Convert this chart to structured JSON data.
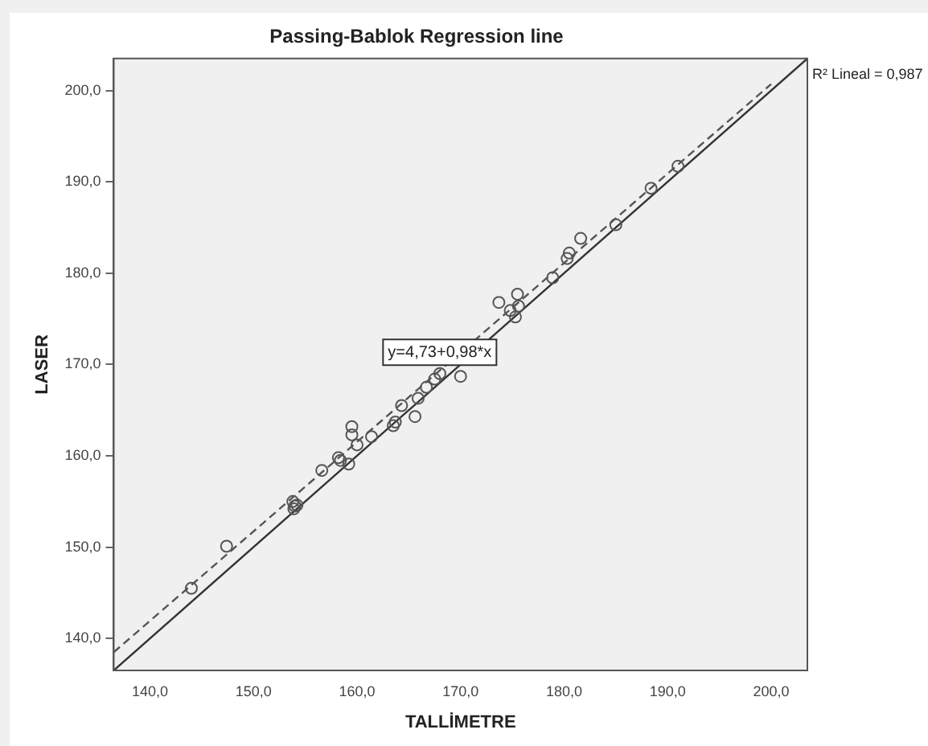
{
  "chart_data": {
    "type": "scatter",
    "title": "Passing-Bablok Regression line",
    "xlabel": "TALLİMETRE",
    "ylabel": "LASER",
    "grid": false,
    "legend": false,
    "xlim": [
      136.5,
      203.5
    ],
    "ylim": [
      136.5,
      203.5
    ],
    "xticks": [
      {
        "value": 140,
        "label": "140,0"
      },
      {
        "value": 150,
        "label": "150,0"
      },
      {
        "value": 160,
        "label": "160,0"
      },
      {
        "value": 170,
        "label": "170,0"
      },
      {
        "value": 180,
        "label": "180,0"
      },
      {
        "value": 190,
        "label": "190,0"
      },
      {
        "value": 200,
        "label": "200,0"
      }
    ],
    "yticks": [
      {
        "value": 140,
        "label": "140,0"
      },
      {
        "value": 150,
        "label": "150,0"
      },
      {
        "value": 160,
        "label": "160,0"
      },
      {
        "value": 170,
        "label": "170,0"
      },
      {
        "value": 180,
        "label": "180,0"
      },
      {
        "value": 190,
        "label": "190,0"
      },
      {
        "value": 200,
        "label": "200,0"
      }
    ],
    "series": [
      {
        "color": "#555555",
        "marker": "circle",
        "x": [
          144,
          147.4,
          153.8,
          154,
          154.2,
          153.9,
          156.6,
          158.2,
          158.4,
          159.2,
          159.5,
          159.5,
          160,
          161.4,
          163.5,
          163.7,
          164.3,
          165.6,
          165.9,
          166.7,
          167.5,
          168,
          170,
          173.7,
          174.8,
          175.5,
          175.3,
          175.6,
          178.9,
          180.5,
          180.3,
          181.6,
          185,
          188.4,
          191
        ],
        "values": [
          145.5,
          150.1,
          155,
          154.5,
          154.6,
          154.2,
          158.4,
          159.8,
          159.5,
          159.1,
          163.2,
          162.3,
          161.2,
          162.1,
          163.3,
          163.7,
          165.5,
          164.3,
          166.3,
          167.5,
          168.4,
          169,
          168.7,
          176.8,
          175.9,
          177.7,
          175.2,
          176.4,
          179.5,
          182.2,
          181.6,
          183.8,
          185.3,
          189.3,
          191.7
        ]
      },
      {
        "type": "line",
        "color": "#333333",
        "line_style": "solid",
        "marker": "none",
        "x": [
          136.5,
          203.5
        ],
        "values": [
          136.5,
          203.5
        ]
      },
      {
        "type": "line",
        "color": "#555555",
        "line_style": "dashed",
        "marker": "none",
        "x": [
          136.5,
          200
        ],
        "values": [
          138.5,
          200.7
        ]
      }
    ],
    "annotations": [
      "y=4,73+0,98*x",
      "R² Lineal = 0,987"
    ]
  }
}
